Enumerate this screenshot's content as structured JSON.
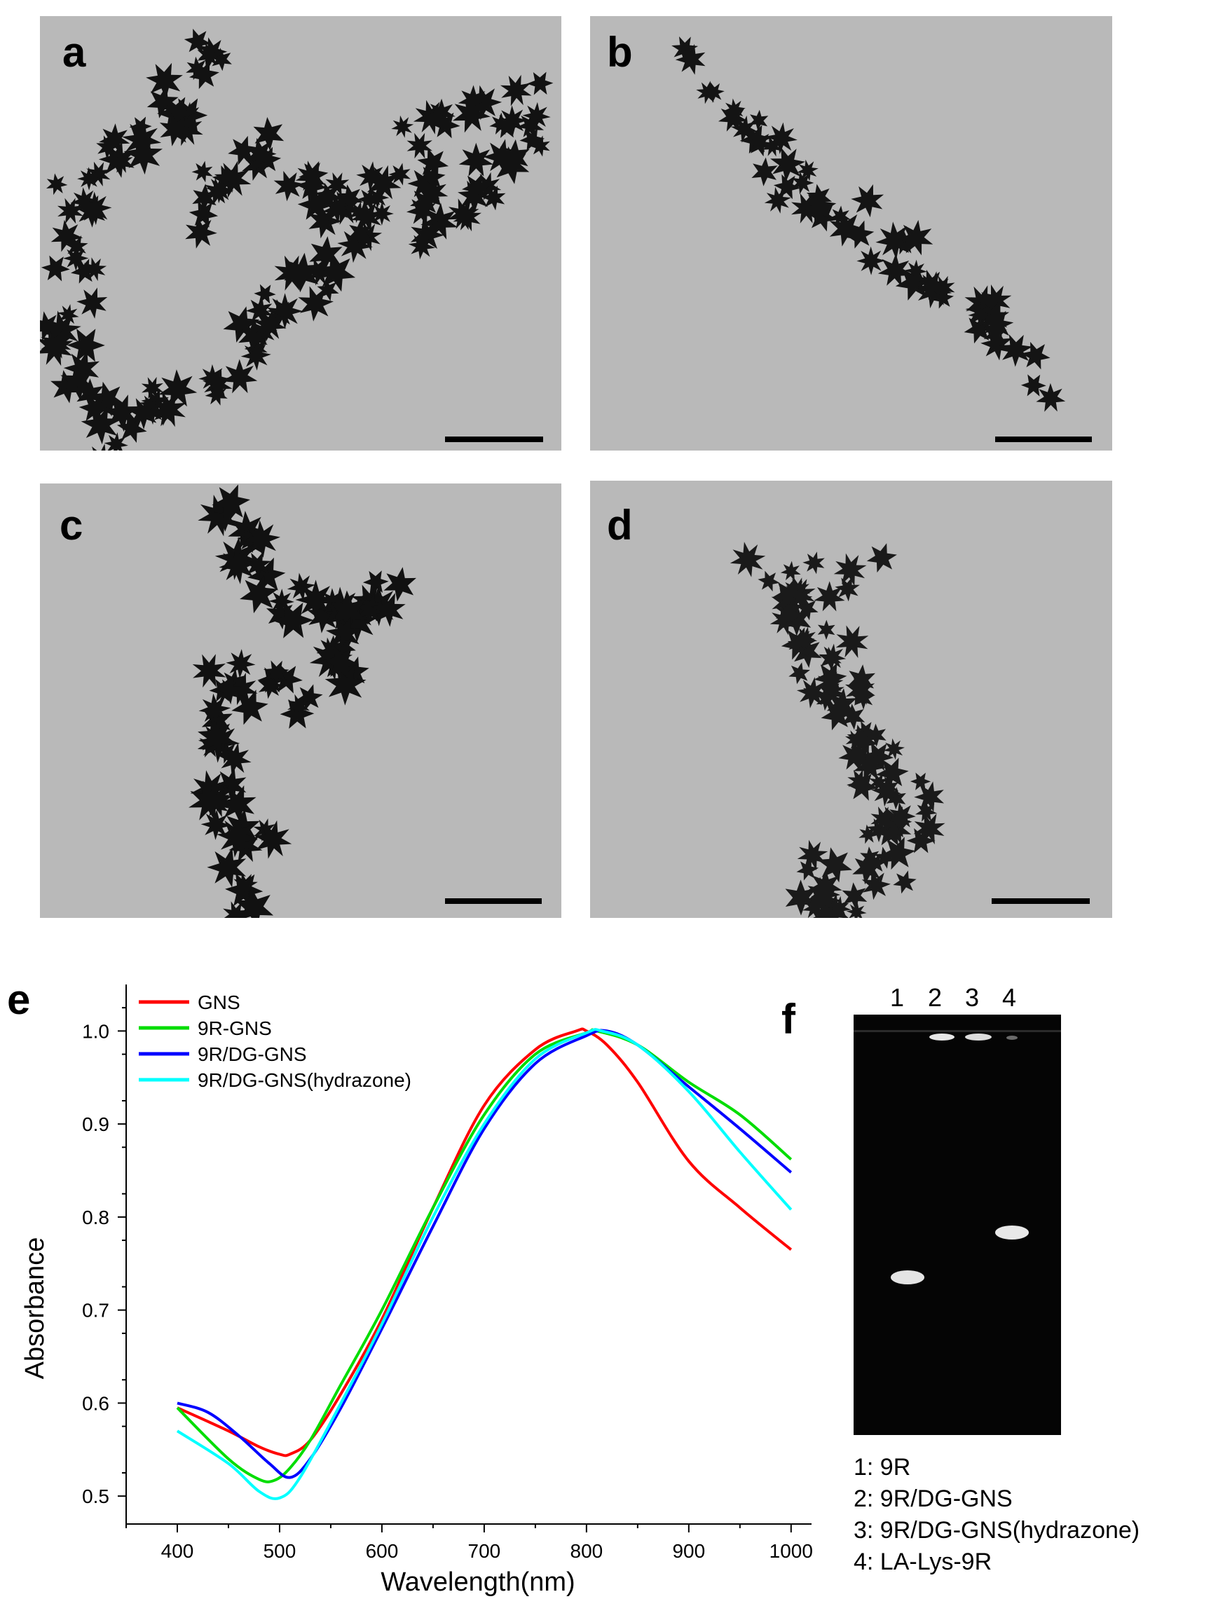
{
  "panels": {
    "a": {
      "label": "a"
    },
    "b": {
      "label": "b"
    },
    "c": {
      "label": "c"
    },
    "d": {
      "label": "d"
    },
    "e": {
      "label": "e"
    },
    "f": {
      "label": "f"
    }
  },
  "chart_data": {
    "type": "line",
    "title": "",
    "xlabel": "Wavelength(nm)",
    "ylabel": "Absorbance",
    "xlim": [
      350,
      1020
    ],
    "ylim": [
      0.47,
      1.05
    ],
    "xticks": [
      400,
      500,
      600,
      700,
      800,
      900,
      1000
    ],
    "yticks": [
      0.5,
      0.6,
      0.7,
      0.8,
      0.9,
      1.0
    ],
    "xtick_labels": [
      "400",
      "500",
      "600",
      "700",
      "800",
      "900",
      "1000"
    ],
    "ytick_labels": [
      "0.5",
      "0.6",
      "0.7",
      "0.8",
      "0.9",
      "1.0"
    ],
    "legend_position": "top-left",
    "grid": false,
    "series": [
      {
        "name": "GNS",
        "color": "#ff0000",
        "x": [
          400,
          450,
          480,
          500,
          510,
          530,
          560,
          600,
          650,
          700,
          750,
          790,
          800,
          820,
          850,
          900,
          950,
          1000
        ],
        "y": [
          0.595,
          0.57,
          0.553,
          0.545,
          0.545,
          0.56,
          0.61,
          0.69,
          0.81,
          0.92,
          0.98,
          1.0,
          1.0,
          0.985,
          0.945,
          0.86,
          0.81,
          0.765
        ]
      },
      {
        "name": "9R-GNS",
        "color": "#00dd00",
        "x": [
          400,
          450,
          480,
          495,
          510,
          530,
          560,
          600,
          650,
          700,
          750,
          800,
          810,
          850,
          900,
          950,
          1000
        ],
        "y": [
          0.595,
          0.54,
          0.518,
          0.517,
          0.53,
          0.56,
          0.62,
          0.7,
          0.81,
          0.91,
          0.975,
          0.998,
          1.0,
          0.985,
          0.945,
          0.91,
          0.862
        ]
      },
      {
        "name": "9R/DG-GNS",
        "color": "#0000ff",
        "x": [
          400,
          430,
          460,
          490,
          510,
          530,
          560,
          600,
          650,
          700,
          750,
          800,
          820,
          850,
          900,
          950,
          1000
        ],
        "y": [
          0.6,
          0.59,
          0.565,
          0.535,
          0.52,
          0.54,
          0.595,
          0.68,
          0.79,
          0.895,
          0.965,
          0.995,
          1.0,
          0.985,
          0.94,
          0.895,
          0.848
        ]
      },
      {
        "name": "9R/DG-GNS(hydrazone)",
        "color": "#00ffff",
        "x": [
          400,
          450,
          480,
          500,
          520,
          560,
          600,
          650,
          700,
          750,
          800,
          815,
          850,
          900,
          950,
          1000
        ],
        "y": [
          0.57,
          0.535,
          0.505,
          0.498,
          0.52,
          0.6,
          0.685,
          0.8,
          0.9,
          0.97,
          0.998,
          1.0,
          0.985,
          0.935,
          0.87,
          0.808
        ]
      }
    ]
  },
  "gel": {
    "lanes": [
      "1",
      "2",
      "3",
      "4"
    ],
    "legend": [
      "1: 9R",
      "2: 9R/DG-GNS",
      "3: 9R/DG-GNS(hydrazone)",
      "4: LA-Lys-9R"
    ]
  }
}
